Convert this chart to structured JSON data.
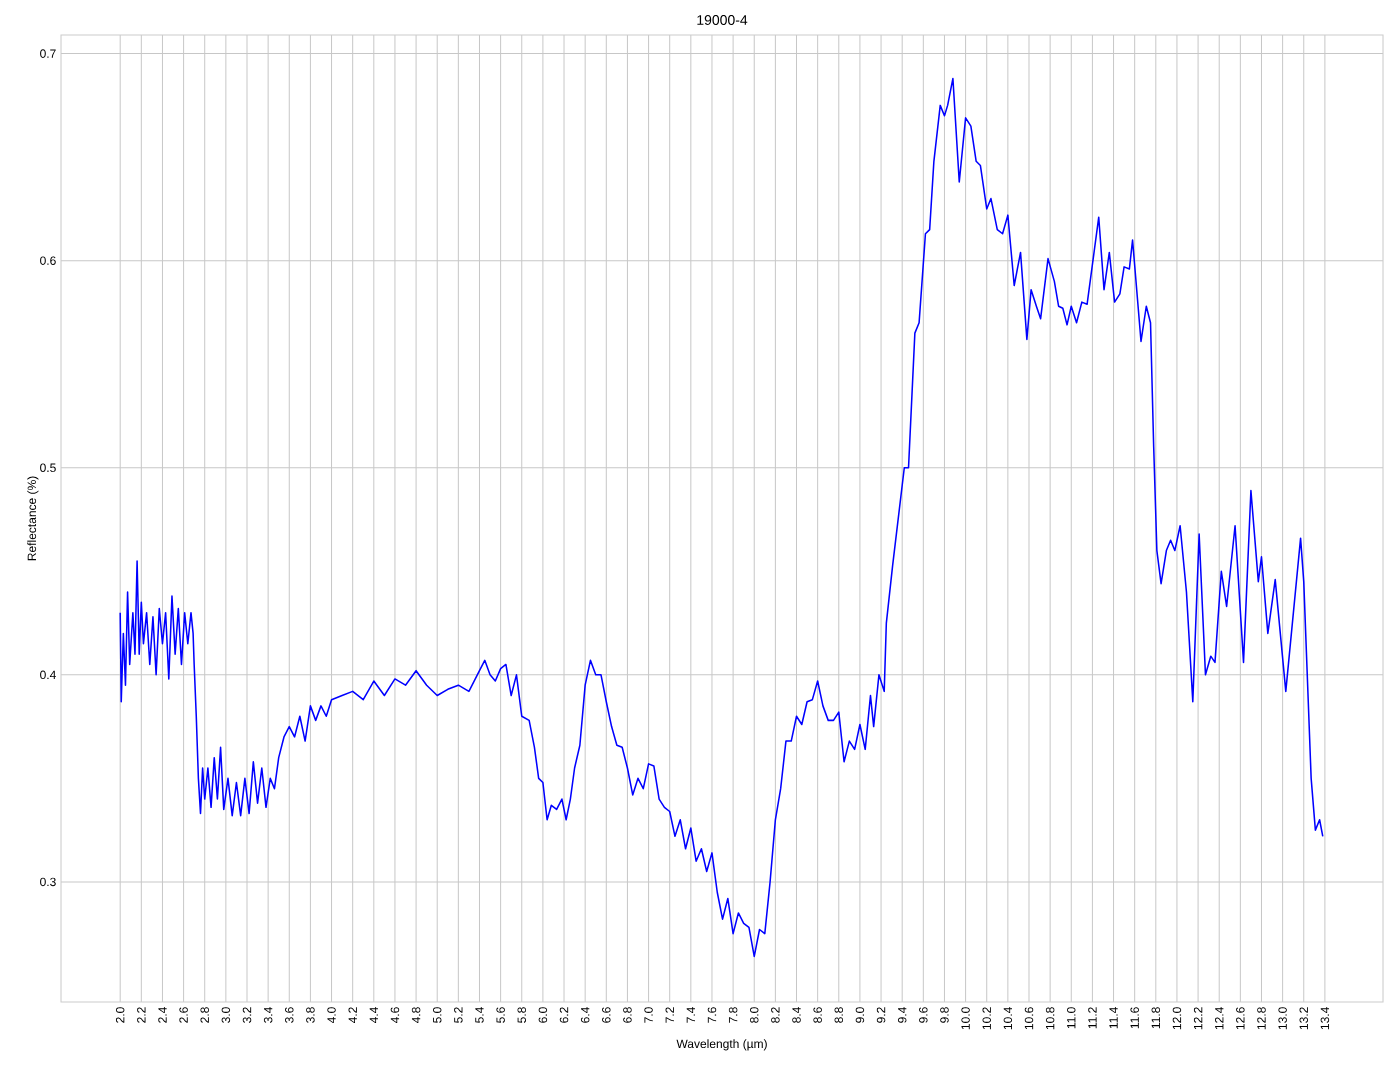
{
  "chart_data": {
    "type": "line",
    "title": "19000-4",
    "xlabel": "Wavelength (µm)",
    "ylabel": "Reflectance (%)",
    "xlim": [
      1.44,
      13.95
    ],
    "ylim": [
      0.242,
      0.709
    ],
    "xticks": [
      {
        "value": 2.0,
        "label": "2.0"
      },
      {
        "value": 2.2,
        "label": "2.2"
      },
      {
        "value": 2.4,
        "label": "2.4"
      },
      {
        "value": 2.6,
        "label": "2.6"
      },
      {
        "value": 2.8,
        "label": "2.8"
      },
      {
        "value": 3.0,
        "label": "3.0"
      },
      {
        "value": 3.2,
        "label": "3.2"
      },
      {
        "value": 3.4,
        "label": "3.4"
      },
      {
        "value": 3.6,
        "label": "3.6"
      },
      {
        "value": 3.8,
        "label": "3.8"
      },
      {
        "value": 4.0,
        "label": "4.0"
      },
      {
        "value": 4.2,
        "label": "4.2"
      },
      {
        "value": 4.4,
        "label": "4.4"
      },
      {
        "value": 4.6,
        "label": "4.6"
      },
      {
        "value": 4.8,
        "label": "4.8"
      },
      {
        "value": 5.0,
        "label": "5.0"
      },
      {
        "value": 5.2,
        "label": "5.2"
      },
      {
        "value": 5.4,
        "label": "5.4"
      },
      {
        "value": 5.6,
        "label": "5.6"
      },
      {
        "value": 5.8,
        "label": "5.8"
      },
      {
        "value": 6.0,
        "label": "6.0"
      },
      {
        "value": 6.2,
        "label": "6.2"
      },
      {
        "value": 6.4,
        "label": "6.4"
      },
      {
        "value": 6.6,
        "label": "6.6"
      },
      {
        "value": 6.8,
        "label": "6.8"
      },
      {
        "value": 7.0,
        "label": "7.0"
      },
      {
        "value": 7.2,
        "label": "7.2"
      },
      {
        "value": 7.4,
        "label": "7.4"
      },
      {
        "value": 7.6,
        "label": "7.6"
      },
      {
        "value": 7.8,
        "label": "7.8"
      },
      {
        "value": 8.0,
        "label": "8.0"
      },
      {
        "value": 8.2,
        "label": "8.2"
      },
      {
        "value": 8.4,
        "label": "8.4"
      },
      {
        "value": 8.6,
        "label": "8.6"
      },
      {
        "value": 8.8,
        "label": "8.8"
      },
      {
        "value": 9.0,
        "label": "9.0"
      },
      {
        "value": 9.2,
        "label": "9.2"
      },
      {
        "value": 9.4,
        "label": "9.4"
      },
      {
        "value": 9.6,
        "label": "9.6"
      },
      {
        "value": 9.8,
        "label": "9.8"
      },
      {
        "value": 10.0,
        "label": "10.0"
      },
      {
        "value": 10.2,
        "label": "10.2"
      },
      {
        "value": 10.4,
        "label": "10.4"
      },
      {
        "value": 10.6,
        "label": "10.6"
      },
      {
        "value": 10.8,
        "label": "10.8"
      },
      {
        "value": 11.0,
        "label": "11.0"
      },
      {
        "value": 11.2,
        "label": "11.2"
      },
      {
        "value": 11.4,
        "label": "11.4"
      },
      {
        "value": 11.6,
        "label": "11.6"
      },
      {
        "value": 11.8,
        "label": "11.8"
      },
      {
        "value": 12.0,
        "label": "12.0"
      },
      {
        "value": 12.2,
        "label": "12.2"
      },
      {
        "value": 12.4,
        "label": "12.4"
      },
      {
        "value": 12.6,
        "label": "12.6"
      },
      {
        "value": 12.8,
        "label": "12.8"
      },
      {
        "value": 13.0,
        "label": "13.0"
      },
      {
        "value": 13.2,
        "label": "13.2"
      },
      {
        "value": 13.4,
        "label": "13.4"
      }
    ],
    "yticks": [
      0.3,
      0.4,
      0.5,
      0.6,
      0.7
    ],
    "grid": true,
    "marker": "none",
    "line_style": "solid",
    "series": [
      {
        "color": "#0000ff",
        "x": [
          2.0,
          2.01,
          2.03,
          2.05,
          2.07,
          2.09,
          2.12,
          2.14,
          2.16,
          2.18,
          2.2,
          2.22,
          2.25,
          2.28,
          2.31,
          2.34,
          2.37,
          2.4,
          2.43,
          2.46,
          2.49,
          2.52,
          2.55,
          2.58,
          2.61,
          2.64,
          2.67,
          2.69,
          2.7,
          2.72,
          2.74,
          2.76,
          2.78,
          2.8,
          2.83,
          2.86,
          2.89,
          2.92,
          2.95,
          2.98,
          3.02,
          3.06,
          3.1,
          3.14,
          3.18,
          3.22,
          3.26,
          3.3,
          3.34,
          3.38,
          3.42,
          3.46,
          3.5,
          3.55,
          3.6,
          3.65,
          3.7,
          3.75,
          3.8,
          3.85,
          3.9,
          3.95,
          4.0,
          4.1,
          4.2,
          4.3,
          4.4,
          4.5,
          4.6,
          4.7,
          4.8,
          4.9,
          5.0,
          5.1,
          5.2,
          5.3,
          5.4,
          5.45,
          5.5,
          5.55,
          5.6,
          5.65,
          5.7,
          5.75,
          5.8,
          5.87,
          5.92,
          5.96,
          6.0,
          6.04,
          6.08,
          6.13,
          6.18,
          6.22,
          6.26,
          6.3,
          6.35,
          6.4,
          6.45,
          6.5,
          6.55,
          6.6,
          6.65,
          6.7,
          6.75,
          6.8,
          6.85,
          6.9,
          6.95,
          7.0,
          7.05,
          7.1,
          7.15,
          7.2,
          7.25,
          7.3,
          7.35,
          7.4,
          7.45,
          7.5,
          7.55,
          7.6,
          7.65,
          7.7,
          7.75,
          7.8,
          7.85,
          7.9,
          7.95,
          8.0,
          8.05,
          8.1,
          8.15,
          8.2,
          8.25,
          8.3,
          8.35,
          8.4,
          8.45,
          8.5,
          8.55,
          8.6,
          8.65,
          8.7,
          8.75,
          8.8,
          8.85,
          8.9,
          8.95,
          9.0,
          9.05,
          9.1,
          9.13,
          9.18,
          9.23,
          9.25,
          9.31,
          9.42,
          9.46,
          9.52,
          9.56,
          9.62,
          9.66,
          9.7,
          9.76,
          9.8,
          9.83,
          9.88,
          9.94,
          10.0,
          10.05,
          10.1,
          10.14,
          10.2,
          10.24,
          10.3,
          10.35,
          10.4,
          10.46,
          10.52,
          10.58,
          10.62,
          10.67,
          10.71,
          10.78,
          10.84,
          10.88,
          10.92,
          10.96,
          11.0,
          11.05,
          11.1,
          11.15,
          11.26,
          11.31,
          11.36,
          11.41,
          11.46,
          11.5,
          11.55,
          11.58,
          11.66,
          11.71,
          11.75,
          11.78,
          11.81,
          11.85,
          11.9,
          11.94,
          11.98,
          12.03,
          12.09,
          12.15,
          12.21,
          12.27,
          12.32,
          12.36,
          12.42,
          12.47,
          12.55,
          12.63,
          12.7,
          12.77,
          12.8,
          12.86,
          12.93,
          13.03,
          13.17,
          13.2,
          13.27,
          13.31,
          13.35,
          13.38
        ],
        "values": [
          0.43,
          0.387,
          0.42,
          0.395,
          0.44,
          0.405,
          0.43,
          0.41,
          0.455,
          0.41,
          0.435,
          0.415,
          0.43,
          0.405,
          0.428,
          0.4,
          0.432,
          0.415,
          0.43,
          0.398,
          0.438,
          0.41,
          0.432,
          0.405,
          0.43,
          0.415,
          0.43,
          0.42,
          0.405,
          0.38,
          0.35,
          0.333,
          0.355,
          0.34,
          0.355,
          0.336,
          0.36,
          0.34,
          0.365,
          0.335,
          0.35,
          0.332,
          0.348,
          0.332,
          0.35,
          0.333,
          0.358,
          0.338,
          0.355,
          0.336,
          0.35,
          0.345,
          0.36,
          0.37,
          0.375,
          0.37,
          0.38,
          0.368,
          0.385,
          0.378,
          0.385,
          0.38,
          0.388,
          0.39,
          0.392,
          0.388,
          0.397,
          0.39,
          0.398,
          0.395,
          0.402,
          0.395,
          0.39,
          0.393,
          0.395,
          0.392,
          0.402,
          0.407,
          0.4,
          0.397,
          0.403,
          0.405,
          0.39,
          0.4,
          0.38,
          0.378,
          0.365,
          0.35,
          0.348,
          0.33,
          0.337,
          0.335,
          0.34,
          0.33,
          0.34,
          0.355,
          0.366,
          0.395,
          0.407,
          0.4,
          0.4,
          0.387,
          0.375,
          0.366,
          0.365,
          0.355,
          0.342,
          0.35,
          0.345,
          0.357,
          0.356,
          0.34,
          0.336,
          0.334,
          0.322,
          0.33,
          0.316,
          0.326,
          0.31,
          0.316,
          0.305,
          0.314,
          0.295,
          0.282,
          0.292,
          0.275,
          0.285,
          0.28,
          0.278,
          0.264,
          0.277,
          0.275,
          0.3,
          0.33,
          0.345,
          0.368,
          0.368,
          0.38,
          0.376,
          0.387,
          0.388,
          0.397,
          0.385,
          0.378,
          0.378,
          0.382,
          0.358,
          0.368,
          0.364,
          0.376,
          0.364,
          0.39,
          0.375,
          0.4,
          0.392,
          0.425,
          0.453,
          0.5,
          0.5,
          0.565,
          0.57,
          0.613,
          0.615,
          0.648,
          0.675,
          0.67,
          0.675,
          0.688,
          0.638,
          0.669,
          0.665,
          0.648,
          0.646,
          0.625,
          0.63,
          0.615,
          0.613,
          0.622,
          0.588,
          0.604,
          0.562,
          0.586,
          0.578,
          0.572,
          0.601,
          0.59,
          0.578,
          0.577,
          0.569,
          0.578,
          0.57,
          0.58,
          0.579,
          0.621,
          0.586,
          0.604,
          0.58,
          0.584,
          0.597,
          0.596,
          0.61,
          0.561,
          0.578,
          0.57,
          0.51,
          0.46,
          0.444,
          0.46,
          0.465,
          0.46,
          0.472,
          0.44,
          0.387,
          0.468,
          0.4,
          0.409,
          0.406,
          0.45,
          0.433,
          0.472,
          0.406,
          0.489,
          0.445,
          0.457,
          0.42,
          0.446,
          0.392,
          0.466,
          0.445,
          0.35,
          0.325,
          0.33,
          0.322
        ]
      }
    ]
  }
}
